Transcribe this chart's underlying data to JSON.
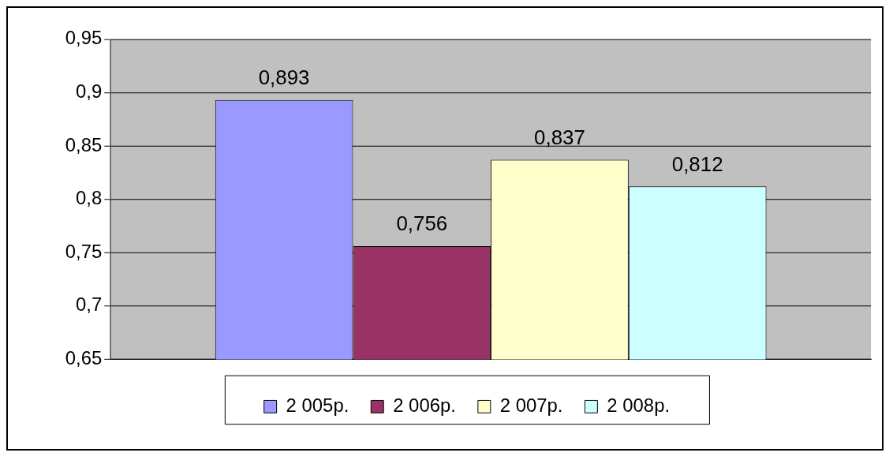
{
  "chart_data": {
    "type": "bar",
    "categories": [
      null
    ],
    "series": [
      {
        "name": "2 005р.",
        "color": "#9999ff",
        "values": [
          0.893
        ],
        "value_labels": [
          "0,893"
        ]
      },
      {
        "name": "2 006р.",
        "color": "#993366",
        "values": [
          0.756
        ],
        "value_labels": [
          "0,756"
        ]
      },
      {
        "name": "2 007р.",
        "color": "#ffffcc",
        "values": [
          0.837
        ],
        "value_labels": [
          "0,837"
        ]
      },
      {
        "name": "2 008р.",
        "color": "#ccffff",
        "values": [
          0.812
        ],
        "value_labels": [
          "0,812"
        ]
      }
    ],
    "ylim": [
      0.65,
      0.95
    ],
    "yticks": [
      {
        "value": 0.65,
        "label": "0,65"
      },
      {
        "value": 0.7,
        "label": "0,7"
      },
      {
        "value": 0.75,
        "label": "0,75"
      },
      {
        "value": 0.8,
        "label": "0,8"
      },
      {
        "value": 0.85,
        "label": "0,85"
      },
      {
        "value": 0.9,
        "label": "0,9"
      },
      {
        "value": 0.95,
        "label": "0,95"
      }
    ],
    "grid": "y",
    "legend": "bottom"
  }
}
